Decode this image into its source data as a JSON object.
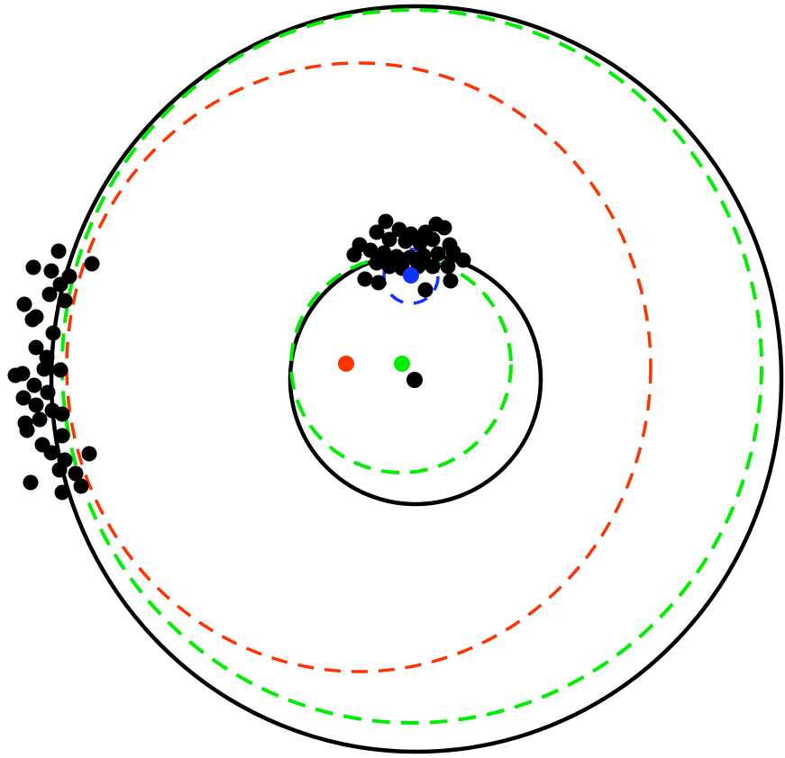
{
  "diagram": {
    "colors": {
      "observed": "#000000",
      "red_model": "#ff3300",
      "green_model": "#00ee00",
      "blue_model": "#1133ff",
      "background": "#ffffff"
    },
    "markers": [
      {
        "name": "red-center-dot",
        "color": "#ff3300"
      },
      {
        "name": "green-center-dot",
        "color": "#00ee00"
      },
      {
        "name": "black-center-dot",
        "color": "#000000"
      },
      {
        "name": "blue-center-dot",
        "color": "#1133ff"
      }
    ],
    "outline_styles": {
      "observed": "solid",
      "red_model": "dashed",
      "green_model": "dashed",
      "blue_model": "dashed"
    }
  }
}
